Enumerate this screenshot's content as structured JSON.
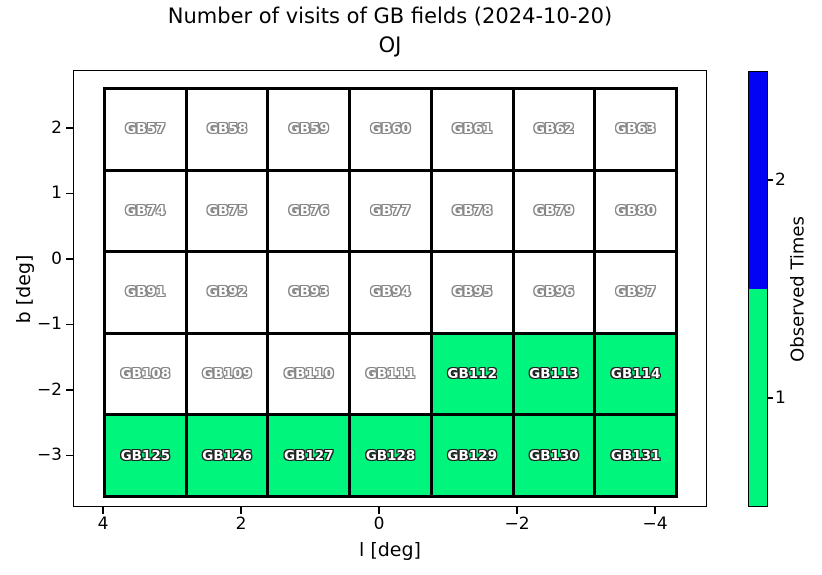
{
  "chart_data": {
    "type": "heatmap",
    "title": "Number of visits of GB fields (2024-10-20)",
    "subtitle": "OJ",
    "xlabel": "l [deg]",
    "ylabel": "b [deg]",
    "x_tick_labels": [
      "4",
      "2",
      "0",
      "−2",
      "−4"
    ],
    "y_tick_labels": [
      "2",
      "1",
      "0",
      "−1",
      "−2",
      "−3"
    ],
    "x_axis_reversed": true,
    "x_range": [
      4.4,
      -4.75
    ],
    "y_range": [
      -3.8,
      2.9
    ],
    "grid_on": false,
    "column_l_centers": [
      3.4,
      2.2,
      1.0,
      -0.2,
      -1.4,
      -2.6,
      -3.7
    ],
    "row_b_centers": [
      2.0,
      0.75,
      -0.5,
      -1.75,
      -3.0
    ],
    "colors_by_visits": {
      "0": "#ffffff",
      "1": "#00f57d",
      "2": "#0202f5"
    },
    "colorbar": {
      "label": "Observed Times",
      "tick_labels": [
        "2",
        "1"
      ],
      "segments": [
        {
          "value": 2,
          "color": "#0202f5"
        },
        {
          "value": 1,
          "color": "#00f57d"
        }
      ]
    },
    "rows": [
      {
        "cells": [
          {
            "label": "GB57",
            "visits": 0
          },
          {
            "label": "GB58",
            "visits": 0
          },
          {
            "label": "GB59",
            "visits": 0
          },
          {
            "label": "GB60",
            "visits": 0
          },
          {
            "label": "GB61",
            "visits": 0
          },
          {
            "label": "GB62",
            "visits": 0
          },
          {
            "label": "GB63",
            "visits": 0
          }
        ]
      },
      {
        "cells": [
          {
            "label": "GB74",
            "visits": 0
          },
          {
            "label": "GB75",
            "visits": 0
          },
          {
            "label": "GB76",
            "visits": 0
          },
          {
            "label": "GB77",
            "visits": 0
          },
          {
            "label": "GB78",
            "visits": 0
          },
          {
            "label": "GB79",
            "visits": 0
          },
          {
            "label": "GB80",
            "visits": 0
          }
        ]
      },
      {
        "cells": [
          {
            "label": "GB91",
            "visits": 0
          },
          {
            "label": "GB92",
            "visits": 0
          },
          {
            "label": "GB93",
            "visits": 0
          },
          {
            "label": "GB94",
            "visits": 0
          },
          {
            "label": "GB95",
            "visits": 0
          },
          {
            "label": "GB96",
            "visits": 0
          },
          {
            "label": "GB97",
            "visits": 0
          }
        ]
      },
      {
        "cells": [
          {
            "label": "GB108",
            "visits": 0
          },
          {
            "label": "GB109",
            "visits": 0
          },
          {
            "label": "GB110",
            "visits": 0
          },
          {
            "label": "GB111",
            "visits": 0
          },
          {
            "label": "GB112",
            "visits": 1
          },
          {
            "label": "GB113",
            "visits": 1
          },
          {
            "label": "GB114",
            "visits": 1
          }
        ]
      },
      {
        "cells": [
          {
            "label": "GB125",
            "visits": 1
          },
          {
            "label": "GB126",
            "visits": 1
          },
          {
            "label": "GB127",
            "visits": 1
          },
          {
            "label": "GB128",
            "visits": 1
          },
          {
            "label": "GB129",
            "visits": 1
          },
          {
            "label": "GB130",
            "visits": 1
          },
          {
            "label": "GB131",
            "visits": 1
          }
        ]
      }
    ]
  }
}
